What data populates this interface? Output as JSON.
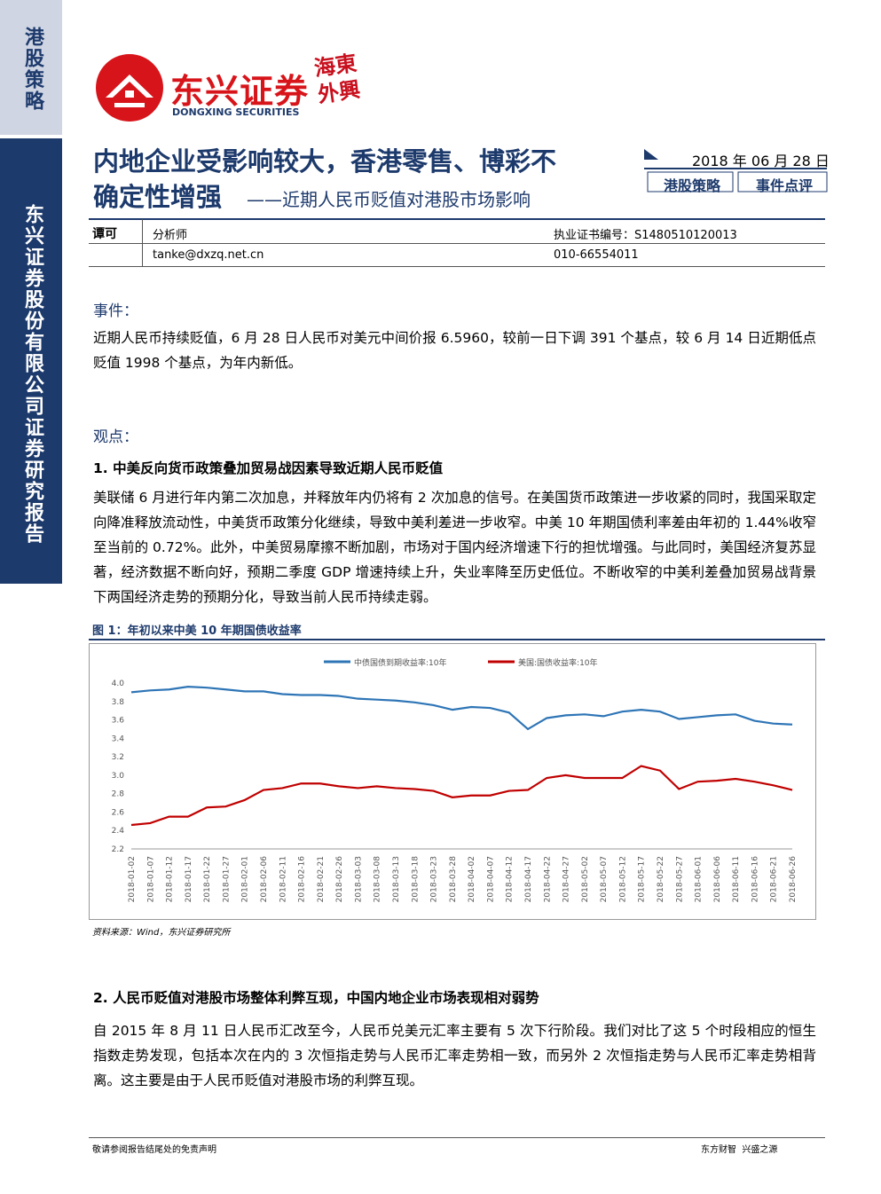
{
  "sidebar": {
    "category": "港股策略",
    "company": "东兴证券股份有限公司证券研究报告"
  },
  "header": {
    "brand": "东兴证券",
    "brand_en": "DONGXING SECURITIES",
    "seal": "海東外興"
  },
  "title": {
    "lines": [
      "内地企业受影响较大，香港零售、博彩不",
      "确定性增强"
    ],
    "subtitle": "——近期人民币贬值对港股市场影响",
    "date": "2018 年 06 月 28 日",
    "tags": [
      "港股策略",
      "事件点评"
    ]
  },
  "analyst": {
    "name": "谭可",
    "role": "分析师",
    "license": "执业证书编号：S1480510120013",
    "email": "tanke@dxzq.net.cn",
    "phone": "010-66554011"
  },
  "event": {
    "heading": "事件：",
    "text": "近期人民币持续贬值，6 月 28 日人民币对美元中间价报 6.5960，较前一日下调 391 个基点，较 6 月 14 日近期低点贬值 1998 个基点，为年内新低。"
  },
  "views": {
    "heading": "观点：",
    "sections": [
      {
        "heading": "1.  中美反向货币政策叠加贸易战因素导致近期人民币贬值",
        "text": "美联储 6 月进行年内第二次加息，并释放年内仍将有 2 次加息的信号。在美国货币政策进一步收紧的同时，我国采取定向降准释放流动性，中美货币政策分化继续，导致中美利差进一步收窄。中美 10 年期国债利率差由年初的 1.44%收窄至当前的 0.72%。此外，中美贸易摩擦不断加剧，市场对于国内经济增速下行的担忧增强。与此同时，美国经济复苏显著，经济数据不断向好，预期二季度 GDP 增速持续上升，失业率降至历史低位。不断收窄的中美利差叠加贸易战背景下两国经济走势的预期分化，导致当前人民币持续走弱。"
      },
      {
        "heading": "2.  人民币贬值对港股市场整体利弊互现，中国内地企业市场表现相对弱势",
        "text": "自 2015 年 8 月 11 日人民币汇改至今，人民币兑美元汇率主要有 5 次下行阶段。我们对比了这 5 个时段相应的恒生指数走势发现，包括本次在内的 3 次恒指走势与人民币汇率走势相一致，而另外 2 次恒指走势与人民币汇率走势相背离。这主要是由于人民币贬值对港股市场的利弊互现。"
      }
    ]
  },
  "figure": {
    "caption": "图 1：年初以来中美 10 年期国债收益率",
    "source": "资料来源：Wind，东兴证券研究所"
  },
  "chart_data": {
    "type": "line",
    "x": [
      "2018-01-02",
      "2018-01-07",
      "2018-01-12",
      "2018-01-17",
      "2018-01-22",
      "2018-01-27",
      "2018-02-01",
      "2018-02-06",
      "2018-02-11",
      "2018-02-16",
      "2018-02-21",
      "2018-02-26",
      "2018-03-03",
      "2018-03-08",
      "2018-03-13",
      "2018-03-18",
      "2018-03-23",
      "2018-03-28",
      "2018-04-02",
      "2018-04-07",
      "2018-04-12",
      "2018-04-17",
      "2018-04-22",
      "2018-04-27",
      "2018-05-02",
      "2018-05-07",
      "2018-05-12",
      "2018-05-17",
      "2018-05-22",
      "2018-05-27",
      "2018-06-01",
      "2018-06-06",
      "2018-06-11",
      "2018-06-16",
      "2018-06-21",
      "2018-06-26"
    ],
    "series": [
      {
        "name": "中债国债到期收益率:10年",
        "color": "#2e75b6",
        "values": [
          3.9,
          3.92,
          3.93,
          3.96,
          3.95,
          3.93,
          3.91,
          3.91,
          3.88,
          3.87,
          3.87,
          3.86,
          3.83,
          3.82,
          3.81,
          3.79,
          3.76,
          3.71,
          3.74,
          3.73,
          3.68,
          3.5,
          3.62,
          3.65,
          3.66,
          3.64,
          3.69,
          3.71,
          3.69,
          3.61,
          3.63,
          3.65,
          3.66,
          3.59,
          3.56,
          3.55
        ]
      },
      {
        "name": "美国:国债收益率:10年",
        "color": "#c00000",
        "values": [
          2.46,
          2.48,
          2.55,
          2.55,
          2.65,
          2.66,
          2.73,
          2.84,
          2.86,
          2.91,
          2.91,
          2.88,
          2.86,
          2.88,
          2.86,
          2.85,
          2.83,
          2.76,
          2.78,
          2.78,
          2.83,
          2.84,
          2.97,
          3.0,
          2.97,
          2.97,
          2.97,
          3.1,
          3.05,
          2.85,
          2.93,
          2.94,
          2.96,
          2.93,
          2.89,
          2.84
        ]
      }
    ],
    "ylim": [
      2.2,
      4.0
    ],
    "yticks": [
      2.2,
      2.4,
      2.6,
      2.8,
      {
        "value": 3.0,
        "label": "3.0"
      },
      3.2,
      3.4,
      3.6,
      3.8,
      {
        "value": 4.0,
        "label": "4.0"
      }
    ],
    "grid": false
  },
  "footer": {
    "left": "敬请参阅报告结尾处的免责声明",
    "right": "东方财智  兴盛之源"
  }
}
